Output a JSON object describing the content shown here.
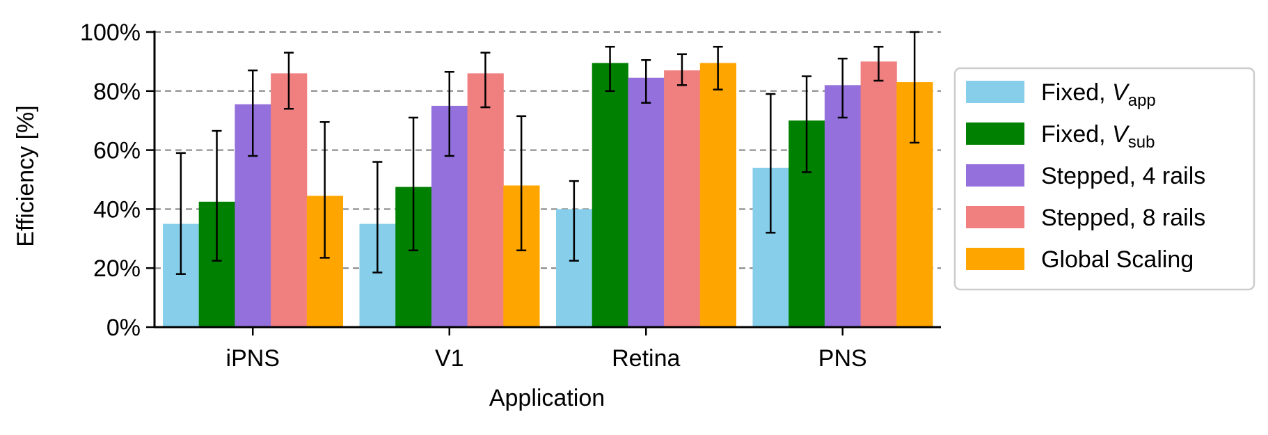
{
  "chart_data": {
    "type": "bar",
    "title": "",
    "xlabel": "Application",
    "ylabel": "Efficiency [%]",
    "ylim": [
      0,
      100
    ],
    "yticks": [
      0,
      20,
      40,
      60,
      80,
      100
    ],
    "ytick_labels": [
      "0%",
      "20%",
      "40%",
      "60%",
      "80%",
      "100%"
    ],
    "grid": "horizontal dashed",
    "legend_position": "right",
    "categories": [
      "iPNS",
      "V1",
      "Retina",
      "PNS"
    ],
    "series": [
      {
        "name": "Fixed, V_app",
        "legend_main": "Fixed, ",
        "legend_var": "V",
        "legend_sub": "app",
        "color": "#87CEEB",
        "values": [
          35,
          35,
          40,
          54
        ],
        "err_low": [
          18,
          18.5,
          22.5,
          32
        ],
        "err_high": [
          59,
          56,
          49.5,
          79
        ]
      },
      {
        "name": "Fixed, V_sub",
        "legend_main": "Fixed, ",
        "legend_var": "V",
        "legend_sub": "sub",
        "color": "#008000",
        "values": [
          42.5,
          47.5,
          89.5,
          70
        ],
        "err_low": [
          22.5,
          26,
          80,
          52.5
        ],
        "err_high": [
          66.5,
          71,
          95,
          85
        ]
      },
      {
        "name": "Stepped, 4 rails",
        "legend_main": "Stepped, 4 rails",
        "legend_var": "",
        "legend_sub": "",
        "color": "#9370DB",
        "values": [
          75.5,
          75,
          84.5,
          82
        ],
        "err_low": [
          58,
          58,
          76,
          71
        ],
        "err_high": [
          87,
          86.5,
          90.5,
          91
        ]
      },
      {
        "name": "Stepped, 8 rails",
        "legend_main": "Stepped, 8 rails",
        "legend_var": "",
        "legend_sub": "",
        "color": "#F08080",
        "values": [
          86,
          86,
          87,
          90
        ],
        "err_low": [
          74,
          74.5,
          82,
          83.5
        ],
        "err_high": [
          93,
          93,
          92.5,
          95
        ]
      },
      {
        "name": "Global Scaling",
        "legend_main": "Global Scaling",
        "legend_var": "",
        "legend_sub": "",
        "color": "#FFA500",
        "values": [
          44.5,
          48,
          89.5,
          83
        ],
        "err_low": [
          23.5,
          26,
          80.5,
          62.5
        ],
        "err_high": [
          69.5,
          71.5,
          95,
          100
        ]
      }
    ]
  }
}
